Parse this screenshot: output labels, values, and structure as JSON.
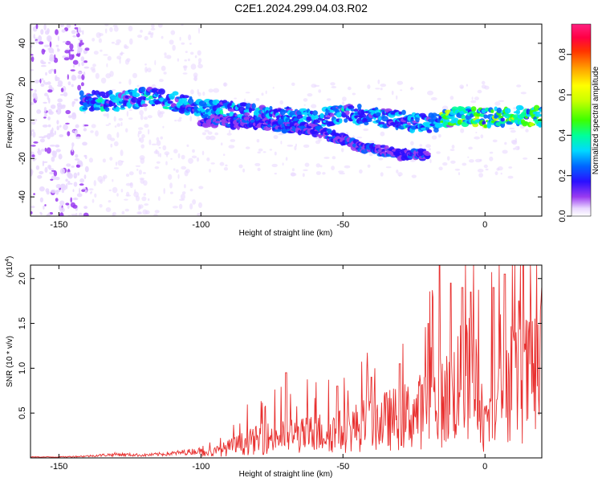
{
  "title": "C2E1.2024.299.04.03.R02",
  "colors": {
    "signal_line": "#e8302f",
    "frame": "#000000"
  },
  "chart_data": [
    {
      "type": "heatmap",
      "xlabel": "Height of straight line (km)",
      "ylabel": "Frequency (Hz)",
      "xlim": [
        -160,
        20
      ],
      "ylim": [
        -50,
        50
      ],
      "xticks": [
        "-150",
        "-100",
        "-50",
        "0"
      ],
      "yticks": [
        "40",
        "20",
        "0",
        "-20",
        "-40"
      ],
      "colorbar": {
        "label": "Normalized spectral amplitude",
        "range": [
          0.0,
          0.95
        ],
        "ticks": [
          "0.0",
          "0.2",
          "0.4",
          "0.6",
          "0.8"
        ]
      },
      "main_band": [
        {
          "x": -142,
          "y": 10
        },
        {
          "x": -130,
          "y": 10
        },
        {
          "x": -120,
          "y": 12
        },
        {
          "x": -110,
          "y": 10
        },
        {
          "x": -100,
          "y": 6
        },
        {
          "x": -90,
          "y": 5
        },
        {
          "x": -80,
          "y": 3
        },
        {
          "x": -70,
          "y": 2
        },
        {
          "x": -60,
          "y": 0
        },
        {
          "x": -50,
          "y": 4
        },
        {
          "x": -40,
          "y": 2
        },
        {
          "x": -30,
          "y": 0
        },
        {
          "x": -20,
          "y": -2
        },
        {
          "x": -10,
          "y": 2
        },
        {
          "x": 0,
          "y": 1
        },
        {
          "x": 10,
          "y": 2
        },
        {
          "x": 20,
          "y": 2
        }
      ],
      "secondary_band": [
        {
          "x": -100,
          "y": 0
        },
        {
          "x": -80,
          "y": -2
        },
        {
          "x": -60,
          "y": -5
        },
        {
          "x": -45,
          "y": -13
        },
        {
          "x": -30,
          "y": -18
        }
      ]
    },
    {
      "type": "line",
      "xlabel": "Height of straight line (km)",
      "ylabel": "SNR (10 * v/v)",
      "y_multiplier": "(x10",
      "y_multiplier_exp": "4",
      "y_multiplier_close": ")",
      "xlim": [
        -160,
        20
      ],
      "ylim": [
        0,
        2.15
      ],
      "xticks": [
        "-150",
        "-100",
        "-50",
        "0"
      ],
      "yticks": [
        "0.5",
        "1.0",
        "1.5",
        "2.0"
      ],
      "series": [
        {
          "x": [
            -160,
            -150,
            -140,
            -130,
            -120,
            -110,
            -100,
            -95,
            -90,
            -85,
            -80,
            -75,
            -70,
            -65,
            -60,
            -55,
            -50,
            -45,
            -40,
            -35,
            -30,
            -25,
            -20,
            -15,
            -12,
            -10,
            -7,
            -5,
            -3,
            0,
            3,
            5,
            7,
            10,
            12,
            15,
            18,
            20
          ],
          "y": [
            0.01,
            0.01,
            0.02,
            0.04,
            0.03,
            0.05,
            0.08,
            0.12,
            0.2,
            0.28,
            0.35,
            0.4,
            0.45,
            0.42,
            0.48,
            0.5,
            0.52,
            0.6,
            0.68,
            0.72,
            0.78,
            0.85,
            0.98,
            1.1,
            1.2,
            1.4,
            1.45,
            1.55,
            1.5,
            0.4,
            1.3,
            1.6,
            1.5,
            1.6,
            1.4,
            1.55,
            1.7,
            1.75
          ],
          "peaks": [
            {
              "x": -70,
              "y": 0.95
            },
            {
              "x": -52,
              "y": 0.8
            },
            {
              "x": -40,
              "y": 0.9
            },
            {
              "x": -30,
              "y": 1.05
            },
            {
              "x": -20,
              "y": 1.5
            },
            {
              "x": -16,
              "y": 2.15
            },
            {
              "x": -12,
              "y": 1.95
            },
            {
              "x": -8,
              "y": 1.9
            },
            {
              "x": -5,
              "y": 1.85
            },
            {
              "x": 3,
              "y": 1.9
            },
            {
              "x": 7,
              "y": 2.05
            },
            {
              "x": 12,
              "y": 1.75
            },
            {
              "x": 20,
              "y": 1.9
            }
          ]
        }
      ]
    }
  ]
}
